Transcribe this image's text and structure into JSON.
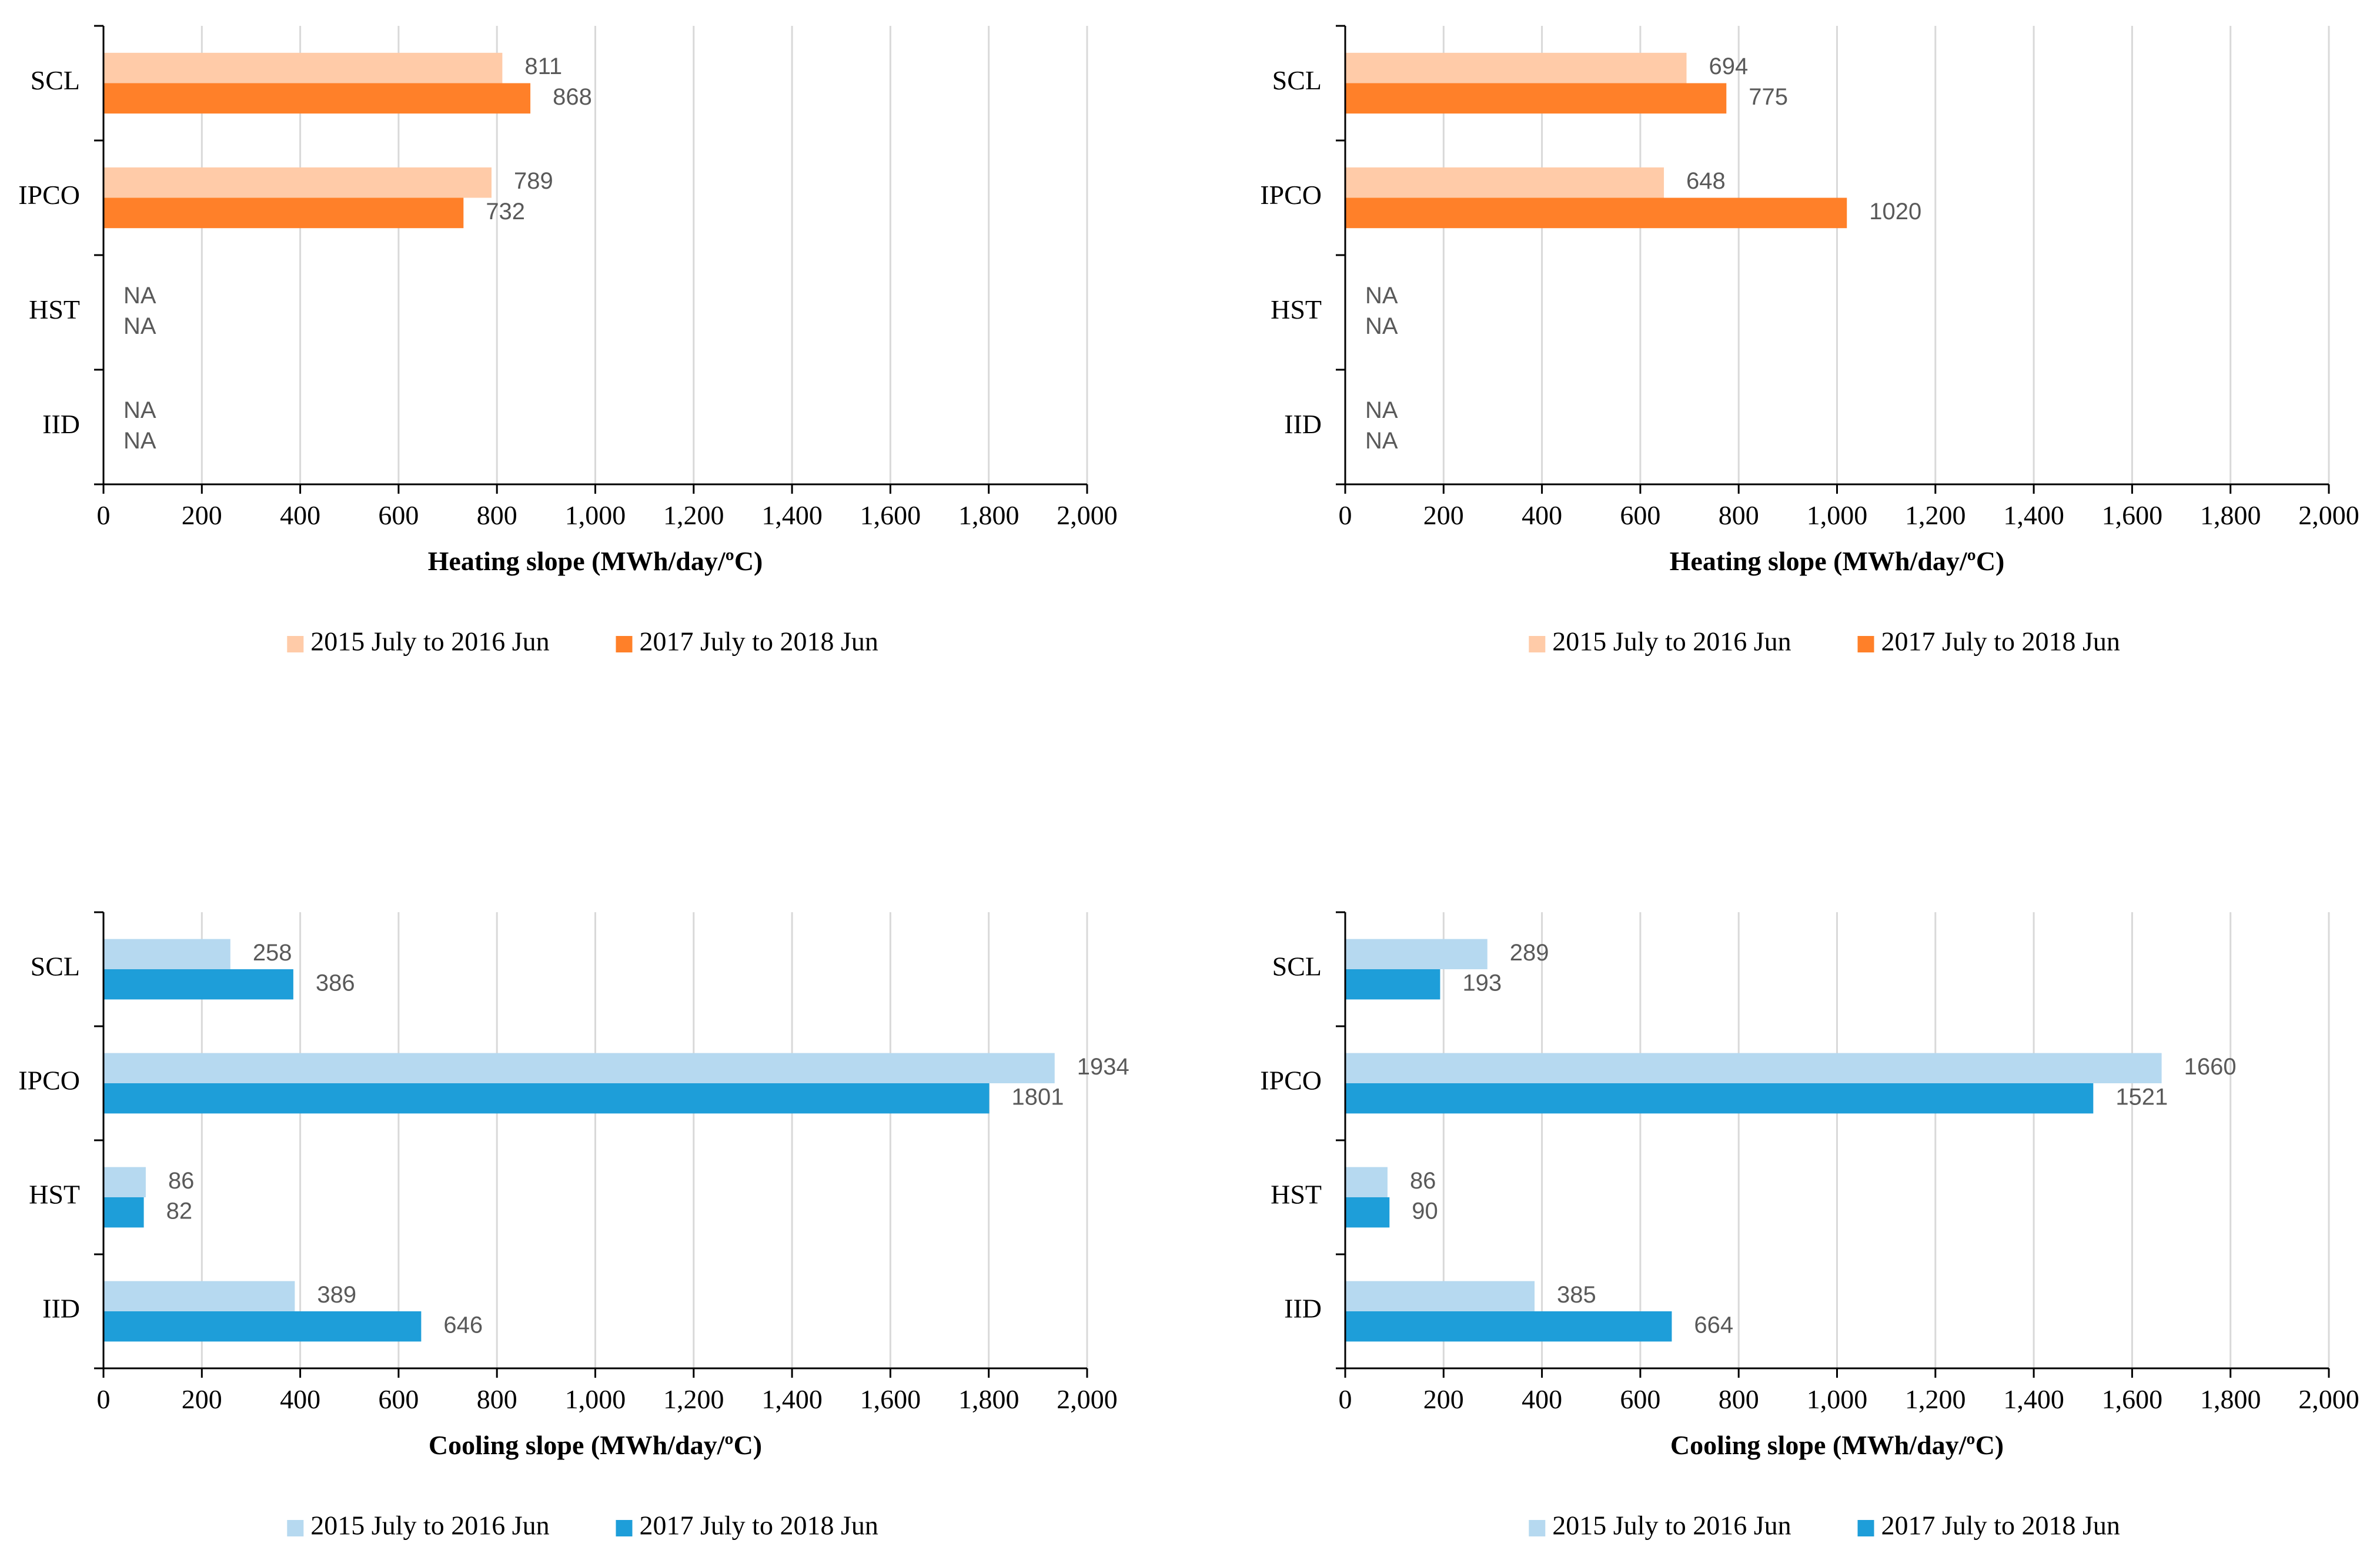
{
  "palette": {
    "heat_light": "#FFCBA8",
    "heat_dark": "#FF8029",
    "cool_light": "#B6D9F0",
    "cool_dark": "#1E9ED9",
    "grid": "#D9D9D9",
    "axis": "#000000",
    "label": "#595959"
  },
  "chart_data": [
    {
      "id": "heating-left",
      "type": "bar",
      "orientation": "horizontal",
      "categories": [
        "SCL",
        "IPCO",
        "HST",
        "IID"
      ],
      "series": [
        {
          "name": "2015 July to 2016 Jun",
          "values": [
            811,
            789,
            null,
            null
          ],
          "labels": [
            "811",
            "789",
            "NA",
            "NA"
          ],
          "color_key": "heat_light"
        },
        {
          "name": "2017 July to 2018 Jun",
          "values": [
            868,
            732,
            null,
            null
          ],
          "labels": [
            "868",
            "732",
            "NA",
            "NA"
          ],
          "color_key": "heat_dark"
        }
      ],
      "xlabel": "Heating slope (MWh/day/ºC)",
      "xlim": [
        0,
        2000
      ],
      "xticks": [
        0,
        200,
        400,
        600,
        800,
        1000,
        1200,
        1400,
        1600,
        1800,
        2000
      ],
      "xtick_labels": [
        "0",
        "200",
        "400",
        "600",
        "800",
        "1,000",
        "1,200",
        "1,400",
        "1,600",
        "1,800",
        "2,000"
      ],
      "grid": true,
      "legend": "bottom"
    },
    {
      "id": "heating-right",
      "type": "bar",
      "orientation": "horizontal",
      "categories": [
        "SCL",
        "IPCO",
        "HST",
        "IID"
      ],
      "series": [
        {
          "name": "2015 July to 2016 Jun",
          "values": [
            694,
            648,
            null,
            null
          ],
          "labels": [
            "694",
            "648",
            "NA",
            "NA"
          ],
          "color_key": "heat_light"
        },
        {
          "name": "2017 July to 2018 Jun",
          "values": [
            775,
            1020,
            null,
            null
          ],
          "labels": [
            "775",
            "1020",
            "NA",
            "NA"
          ],
          "color_key": "heat_dark"
        }
      ],
      "xlabel": "Heating slope (MWh/day/ºC)",
      "xlim": [
        0,
        2000
      ],
      "xticks": [
        0,
        200,
        400,
        600,
        800,
        1000,
        1200,
        1400,
        1600,
        1800,
        2000
      ],
      "xtick_labels": [
        "0",
        "200",
        "400",
        "600",
        "800",
        "1,000",
        "1,200",
        "1,400",
        "1,600",
        "1,800",
        "2,000"
      ],
      "grid": true,
      "legend": "bottom"
    },
    {
      "id": "cooling-left",
      "type": "bar",
      "orientation": "horizontal",
      "categories": [
        "SCL",
        "IPCO",
        "HST",
        "IID"
      ],
      "series": [
        {
          "name": "2015 July to 2016 Jun",
          "values": [
            258,
            1934,
            86,
            389
          ],
          "labels": [
            "258",
            "1934",
            "86",
            "389"
          ],
          "color_key": "cool_light"
        },
        {
          "name": "2017 July to 2018 Jun",
          "values": [
            386,
            1801,
            82,
            646
          ],
          "labels": [
            "386",
            "1801",
            "82",
            "646"
          ],
          "color_key": "cool_dark"
        }
      ],
      "xlabel": "Cooling slope (MWh/day/ºC)",
      "xlim": [
        0,
        2000
      ],
      "xticks": [
        0,
        200,
        400,
        600,
        800,
        1000,
        1200,
        1400,
        1600,
        1800,
        2000
      ],
      "xtick_labels": [
        "0",
        "200",
        "400",
        "600",
        "800",
        "1,000",
        "1,200",
        "1,400",
        "1,600",
        "1,800",
        "2,000"
      ],
      "grid": true,
      "legend": "bottom"
    },
    {
      "id": "cooling-right",
      "type": "bar",
      "orientation": "horizontal",
      "categories": [
        "SCL",
        "IPCO",
        "HST",
        "IID"
      ],
      "series": [
        {
          "name": "2015 July to 2016 Jun",
          "values": [
            289,
            1660,
            86,
            385
          ],
          "labels": [
            "289",
            "1660",
            "86",
            "385"
          ],
          "color_key": "cool_light"
        },
        {
          "name": "2017 July to 2018 Jun",
          "values": [
            193,
            1521,
            90,
            664
          ],
          "labels": [
            "193",
            "1521",
            "90",
            "664"
          ],
          "color_key": "cool_dark"
        }
      ],
      "xlabel": "Cooling slope (MWh/day/ºC)",
      "xlim": [
        0,
        2000
      ],
      "xticks": [
        0,
        200,
        400,
        600,
        800,
        1000,
        1200,
        1400,
        1600,
        1800,
        2000
      ],
      "xtick_labels": [
        "0",
        "200",
        "400",
        "600",
        "800",
        "1,000",
        "1,200",
        "1,400",
        "1,600",
        "1,800",
        "2,000"
      ],
      "grid": true,
      "legend": "bottom"
    }
  ]
}
